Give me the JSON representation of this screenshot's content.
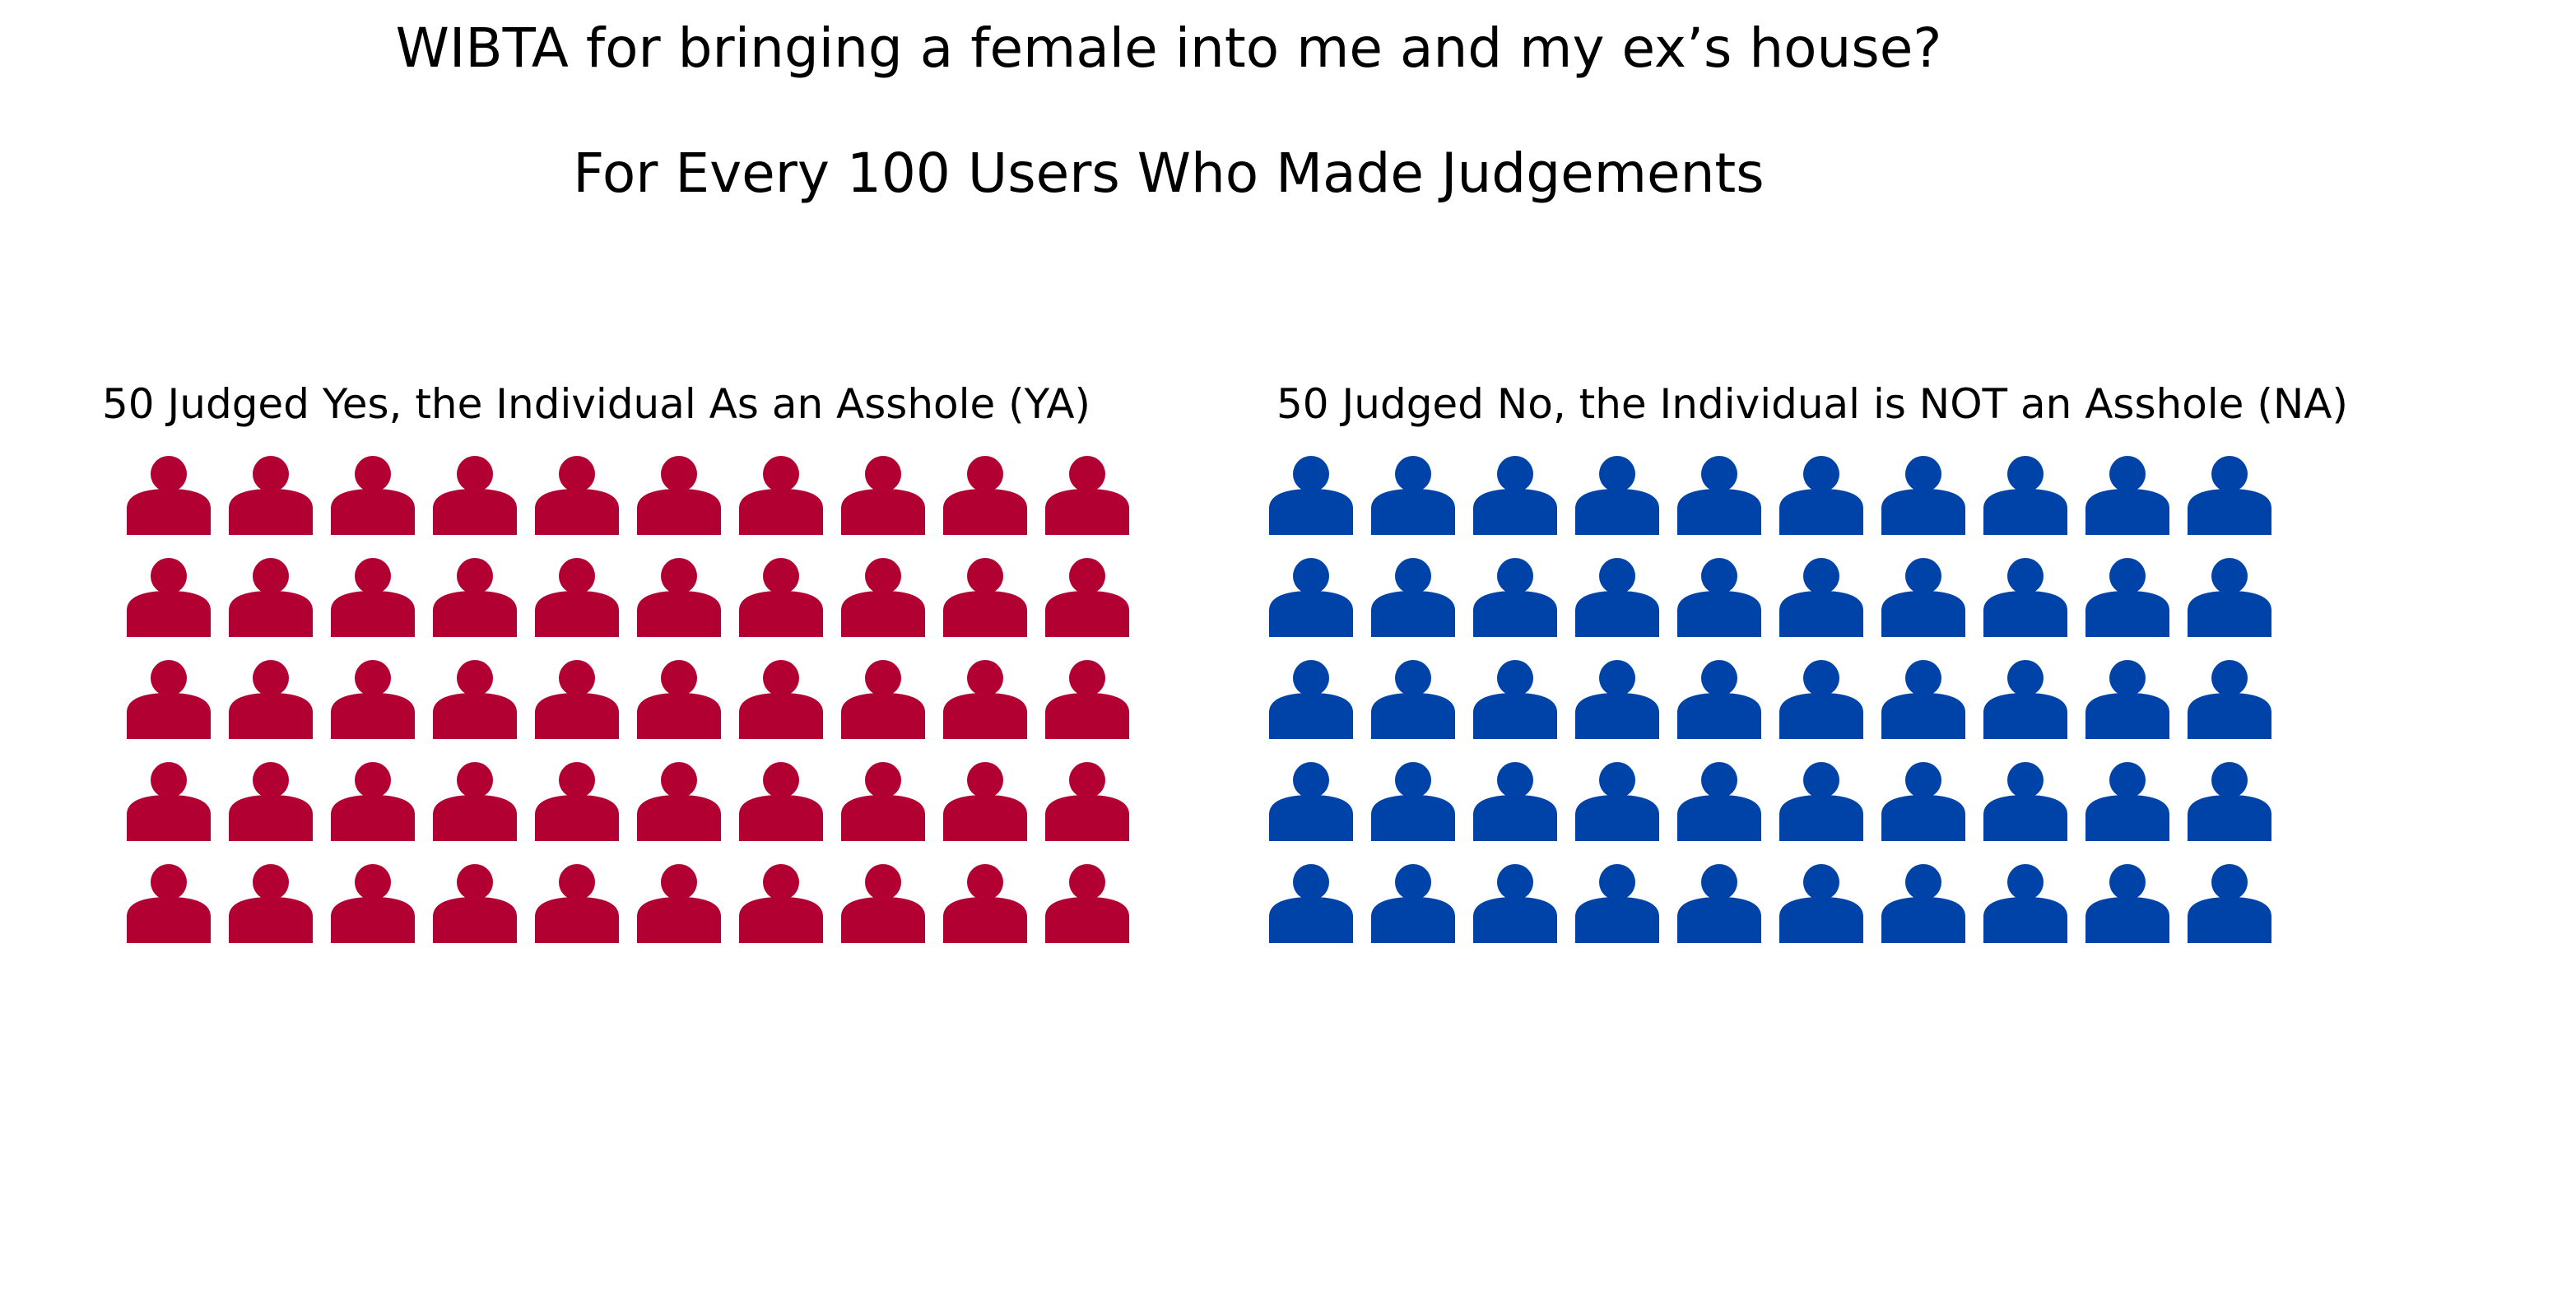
{
  "title": "WIBTA for bringing a female into me and my ex’s house?",
  "subtitle": "For Every 100 Users Who Made Judgements",
  "chart_data": {
    "type": "pictogram",
    "total": 100,
    "rows": 5,
    "columns": 10,
    "groups": [
      {
        "id": "ya",
        "label": "50 Judged Yes, the Individual As an Asshole (YA)",
        "count": 50,
        "color": "#b30033"
      },
      {
        "id": "na",
        "label": "50 Judged No, the Individual is NOT an Asshole (NA)",
        "count": 50,
        "color": "#0043a8"
      }
    ],
    "icon": "person-icon"
  }
}
